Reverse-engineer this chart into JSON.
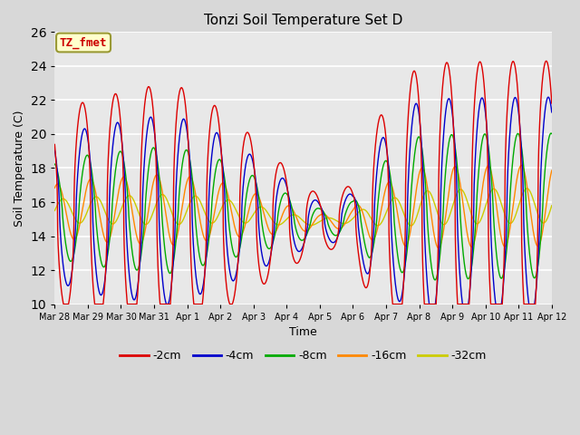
{
  "title": "Tonzi Soil Temperature Set D",
  "xlabel": "Time",
  "ylabel": "Soil Temperature (C)",
  "ylim": [
    10,
    26
  ],
  "xlim": [
    0,
    360
  ],
  "legend_labels": [
    "-2cm",
    "-4cm",
    "-8cm",
    "-16cm",
    "-32cm"
  ],
  "legend_colors": [
    "#dd0000",
    "#0000cc",
    "#00aa00",
    "#ff8800",
    "#cccc00"
  ],
  "annotation_text": "TZ_fmet",
  "annotation_color": "#cc0000",
  "annotation_bg": "#ffffcc",
  "tick_labels": [
    "Mar 28",
    "Mar 29",
    "Mar 30",
    "Mar 31",
    "Apr 1",
    "Apr 2",
    "Apr 3",
    "Apr 4",
    "Apr 5",
    "Apr 6",
    "Apr 7",
    "Apr 8",
    "Apr 9",
    "Apr 10",
    "Apr 11",
    "Apr 12"
  ],
  "tick_positions": [
    0,
    24,
    48,
    72,
    96,
    120,
    144,
    168,
    192,
    216,
    240,
    264,
    288,
    312,
    336,
    360
  ],
  "bg_color": "#e8e8e8",
  "grid_color": "#ffffff",
  "yticks": [
    10,
    12,
    14,
    16,
    18,
    20,
    22,
    24,
    26
  ]
}
